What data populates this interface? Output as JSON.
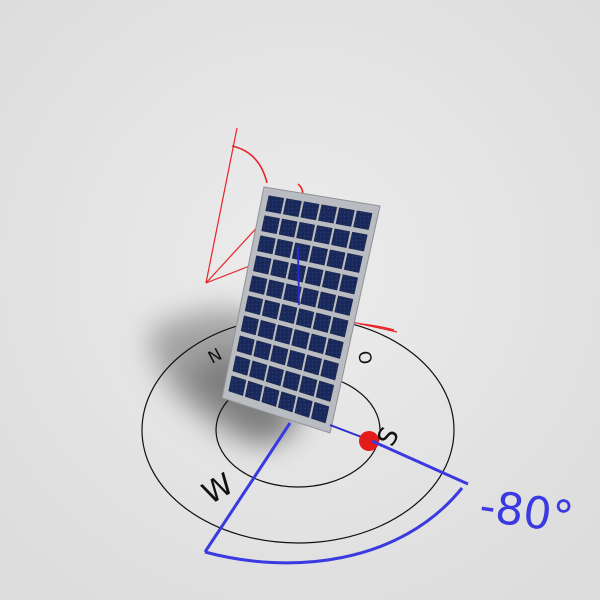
{
  "compass": {
    "north": "N",
    "east": "O",
    "south": "S",
    "west": "W"
  },
  "azimuth": {
    "label": "-80°",
    "value_deg": -80,
    "color": "#3a3ae0"
  },
  "tilt": {
    "color": "#e8232a"
  },
  "panel": {
    "frame_color": "#b9bcc0",
    "cell_color": "#1b2a5c",
    "cell_columns": 6,
    "cell_rows": 10
  },
  "sun_marker": {
    "color": "#e31b1b"
  },
  "background": "#e6e6e6"
}
